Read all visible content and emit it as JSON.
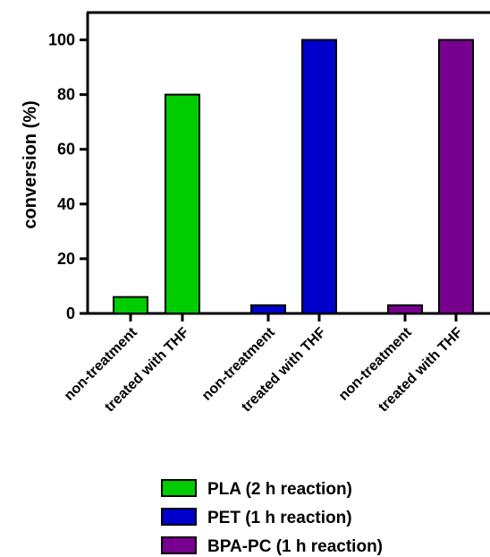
{
  "chart_data": {
    "type": "bar",
    "ylabel": "conversion (%)",
    "ylim": [
      0,
      110
    ],
    "yticks": [
      0,
      20,
      40,
      60,
      80,
      100
    ],
    "grid": false,
    "legend_position": "bottom",
    "series": [
      {
        "name": "PLA (2 h reaction)",
        "color": "#00cc00",
        "categories": [
          "non-treatment",
          "treated with THF"
        ],
        "values": [
          6,
          80
        ]
      },
      {
        "name": "PET (1 h reaction)",
        "color": "#0000cc",
        "categories": [
          "non-treatment",
          "treated with THF"
        ],
        "values": [
          3,
          100
        ]
      },
      {
        "name": "BPA-PC (1 h reaction)",
        "color": "#77008f",
        "categories": [
          "non-treatment",
          "treated with THF"
        ],
        "values": [
          3,
          100
        ]
      }
    ]
  }
}
